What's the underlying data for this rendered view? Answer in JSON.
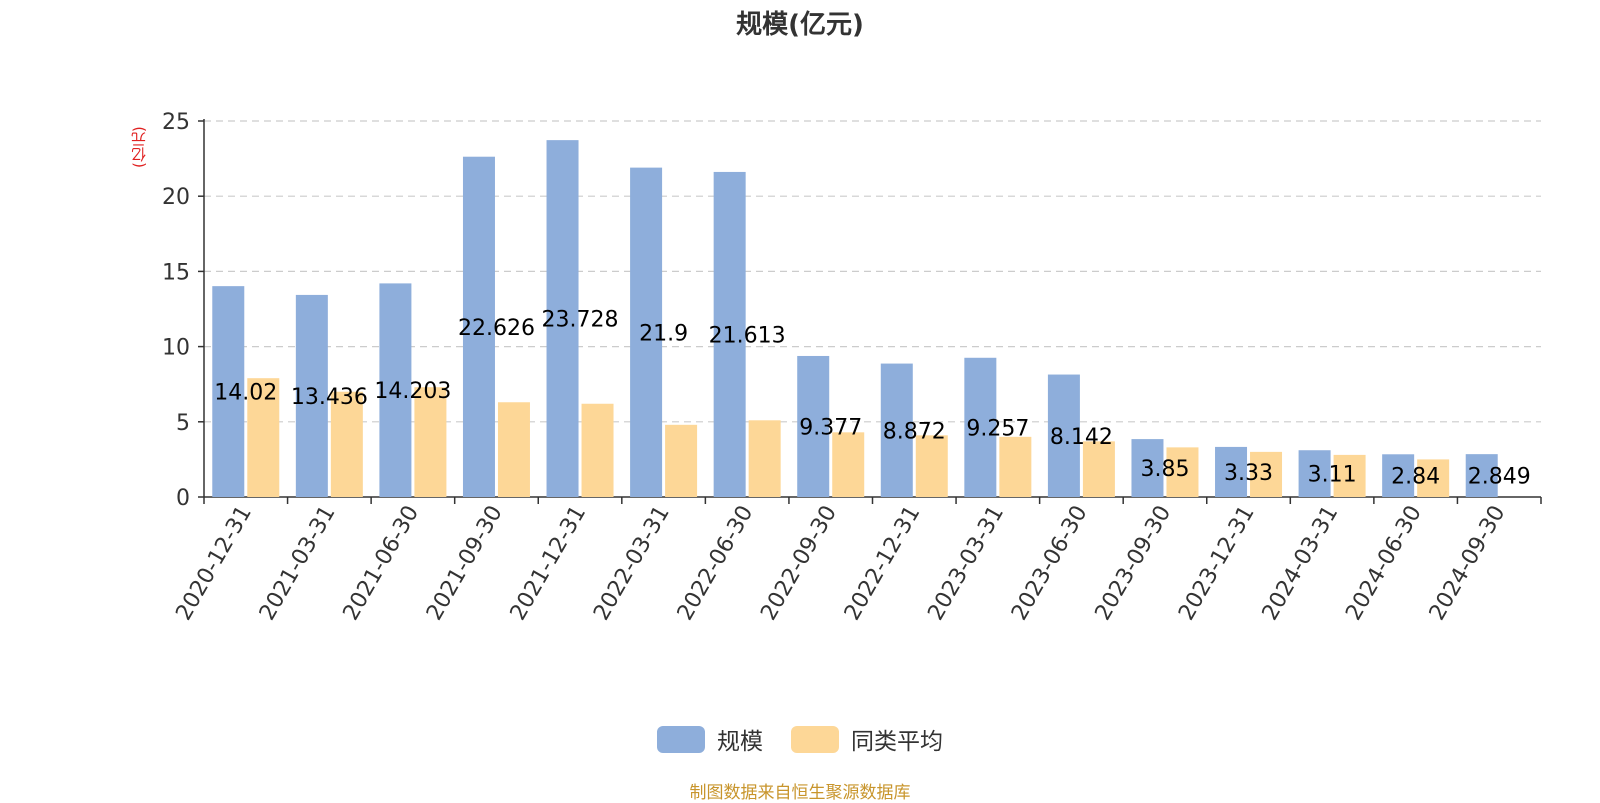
{
  "title": "规模(亿元)",
  "unit_label": "(亿元)",
  "source": "制图数据来自恒生聚源数据库",
  "colors": {
    "scale": "#8eaedb",
    "avg": "#fdd797",
    "axis": "#333333",
    "grid": "#cccccc"
  },
  "chart_data": {
    "type": "bar",
    "title": "规模(亿元)",
    "ylabel": "(亿元)",
    "ylim": [
      0,
      25
    ],
    "yticks": [
      0,
      5,
      10,
      15,
      20,
      25
    ],
    "grid": true,
    "legend_position": "bottom",
    "categories": [
      "2020-12-31",
      "2021-03-31",
      "2021-06-30",
      "2021-09-30",
      "2021-12-31",
      "2022-03-31",
      "2022-06-30",
      "2022-09-30",
      "2022-12-31",
      "2023-03-31",
      "2023-06-30",
      "2023-09-30",
      "2023-12-31",
      "2024-03-31",
      "2024-06-30",
      "2024-09-30"
    ],
    "series": [
      {
        "name": "规模",
        "color": "#8eaedb",
        "values": [
          14.02,
          13.436,
          14.203,
          22.626,
          23.728,
          21.9,
          21.613,
          9.377,
          8.872,
          9.257,
          8.142,
          3.85,
          3.33,
          3.11,
          2.84,
          2.849
        ],
        "labels": [
          "14.02",
          "13.436",
          "14.203",
          "22.626",
          "23.728",
          "21.9",
          "21.613",
          "9.377",
          "8.872",
          "9.257",
          "8.142",
          "3.85",
          "3.33",
          "3.11",
          "2.84",
          "2.849"
        ]
      },
      {
        "name": "同类平均",
        "color": "#fdd797",
        "values": [
          7.9,
          7.0,
          7.3,
          6.3,
          6.2,
          4.8,
          5.1,
          4.3,
          4.1,
          4.0,
          3.7,
          3.3,
          3.0,
          2.8,
          2.5,
          null
        ]
      }
    ]
  }
}
